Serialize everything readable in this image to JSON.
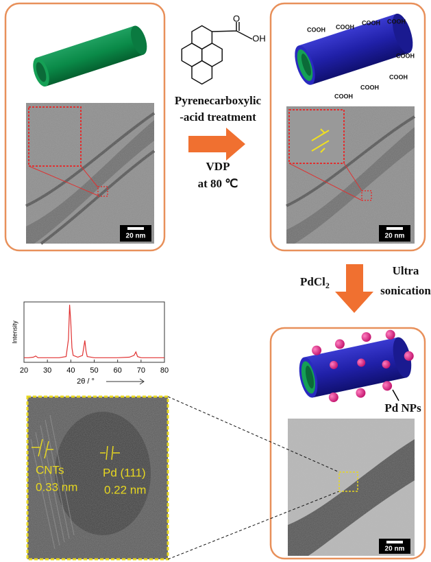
{
  "step1": {
    "lines": [
      "Pyrenecarboxylic",
      "-acid treatment"
    ],
    "condition": [
      "VDP",
      "at 80 ℃"
    ]
  },
  "molecule_labels": [
    "O",
    "OH"
  ],
  "cooh_labels": [
    "COOH",
    "COOH",
    "COOH",
    "COOH",
    "COOH",
    "COOH",
    "COOH",
    "COOH"
  ],
  "step2": {
    "reagent": "PdCl",
    "reagent_sub": "2",
    "condition": [
      "Ultra",
      "sonication"
    ]
  },
  "pd_label": "Pd NPs",
  "scale_bars": [
    "20 nm",
    "20 nm",
    "20 nm"
  ],
  "xrd": {
    "type": "line",
    "x_label": "2θ / °",
    "y_label": "Intensity",
    "color": "#e03030",
    "xlim": [
      20,
      80
    ],
    "xticks": [
      20,
      30,
      40,
      50,
      60,
      70,
      80
    ],
    "ylim": [
      0,
      105
    ],
    "x": [
      20,
      22,
      24,
      25,
      26,
      28,
      30,
      35,
      38,
      39,
      39.5,
      40,
      40.5,
      41,
      43,
      45,
      46,
      46.5,
      47,
      50,
      55,
      60,
      65,
      67,
      67.8,
      68.5,
      70,
      75,
      80
    ],
    "values": [
      8,
      8,
      9,
      11,
      8,
      8,
      8,
      8,
      10,
      40,
      100,
      70,
      25,
      12,
      9,
      12,
      38,
      20,
      10,
      8,
      8,
      8,
      9,
      12,
      18,
      10,
      8,
      8,
      8
    ]
  },
  "hrtem": {
    "labels": [
      "CNTs",
      "0.33 nm",
      "Pd (111)",
      "0.22 nm"
    ]
  }
}
